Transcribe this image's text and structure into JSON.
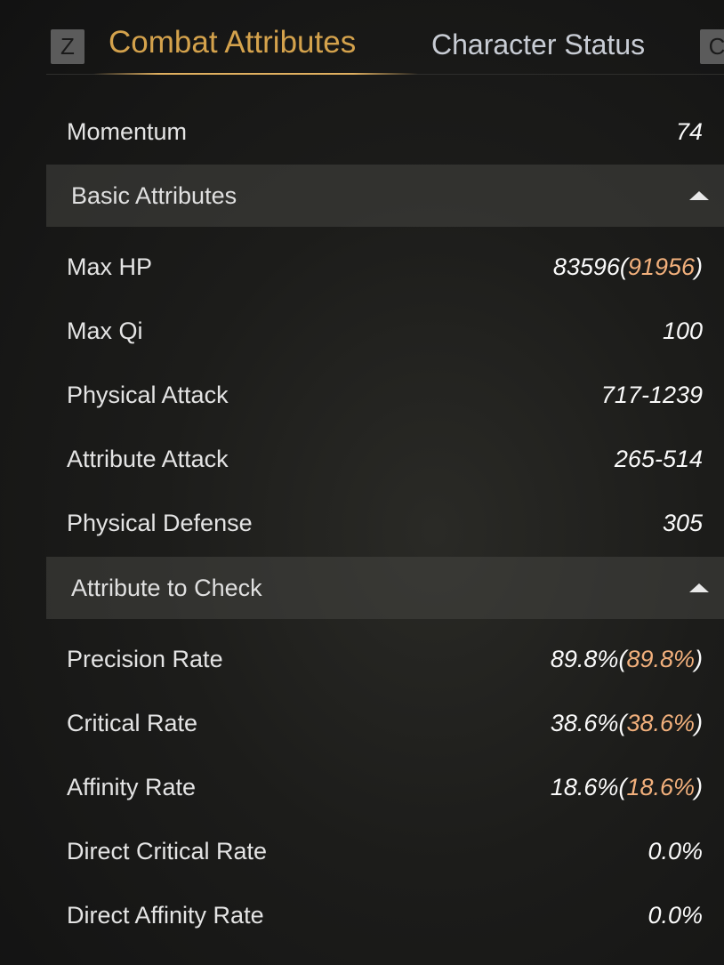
{
  "tabs": {
    "prev_key": "Z",
    "next_key": "C",
    "items": [
      {
        "label": "Combat Attributes",
        "active": true
      },
      {
        "label": "Character Status",
        "active": false
      }
    ]
  },
  "momentum": {
    "label": "Momentum",
    "value": "74"
  },
  "sections": [
    {
      "title": "Basic Attributes",
      "expanded": true,
      "rows": [
        {
          "label": "Max HP",
          "value": "83596",
          "bonus": "91956"
        },
        {
          "label": "Max Qi",
          "value": "100"
        },
        {
          "label": "Physical Attack",
          "value": "717-1239"
        },
        {
          "label": "Attribute Attack",
          "value": "265-514"
        },
        {
          "label": "Physical Defense",
          "value": "305"
        }
      ]
    },
    {
      "title": "Attribute to Check",
      "expanded": true,
      "rows": [
        {
          "label": "Precision Rate",
          "value": "89.8%",
          "bonus": "89.8%"
        },
        {
          "label": "Critical Rate",
          "value": "38.6%",
          "bonus": "38.6%"
        },
        {
          "label": "Affinity Rate",
          "value": "18.6%",
          "bonus": "18.6%"
        },
        {
          "label": "Direct Critical Rate",
          "value": "0.0%",
          "highlight": true
        },
        {
          "label": "Direct Affinity Rate",
          "value": "0.0%",
          "highlight": true
        }
      ]
    }
  ],
  "colors": {
    "accent": "#d4a24c",
    "bonus": "#f2b07c"
  }
}
